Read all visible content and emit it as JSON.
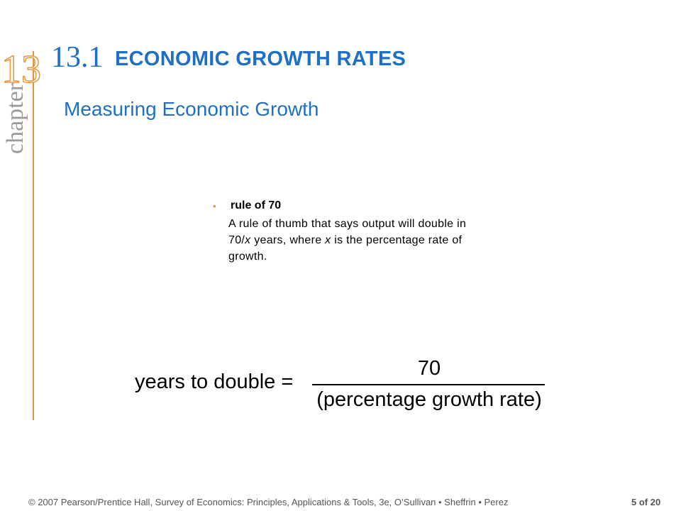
{
  "sidebar": {
    "chapter_number": "13",
    "chapter_word": "chapter"
  },
  "header": {
    "section_number": "13.1",
    "section_title": "ECONOMIC GROWTH RATES",
    "subtitle": "Measuring Economic Growth"
  },
  "definition": {
    "bullet": "•",
    "term": "rule of 70",
    "text": [
      "A rule of thumb that says output will double in 70/",
      "x",
      " years, where ",
      "x",
      " is the percentage rate of growth."
    ]
  },
  "formula": {
    "lhs": "years to double =",
    "numerator": "70",
    "denominator": "(percentage growth rate)"
  },
  "footer": {
    "credit": "© 2007 Pearson/Prentice Hall, Survey of Economics: Principles, Applications & Tools, 3e, O’Sullivan • Sheffrin • Perez",
    "page": "5 of 20"
  }
}
